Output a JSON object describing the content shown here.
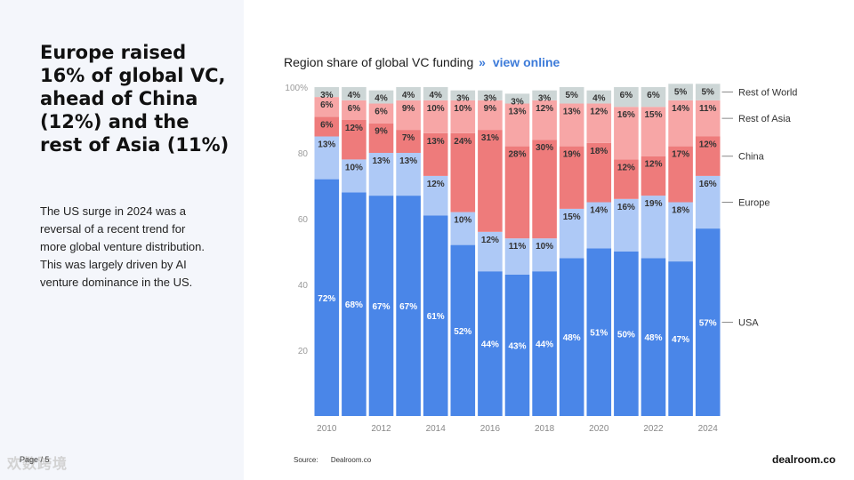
{
  "headline": "Europe raised 16% of global VC, ahead of China (12%) and the rest of Asia (11%)",
  "body": "The US surge in 2024 was a reversal of a recent trend for more global venture distribution. This was largely driven by AI venture dominance in the US.",
  "page_label": "Page / 5",
  "watermark": "欢数跨境",
  "chart_header": {
    "title": "Region share of global VC funding",
    "separator": "»",
    "link": "view online"
  },
  "footer": {
    "source_label": "Source:",
    "source_value": "Dealroom.co",
    "brand": "dealroom.co"
  },
  "colors": {
    "usa": "#4a86e8",
    "europe": "#aec9f6",
    "china": "#ee7b7b",
    "rest_of_asia": "#f7a6a6",
    "rest_of_world": "#cdd6d6"
  },
  "chart_data": {
    "type": "bar",
    "stacked": true,
    "title": "Region share of global VC funding",
    "categories": [
      "2010",
      "2011",
      "2012",
      "2013",
      "2014",
      "2015",
      "2016",
      "2017",
      "2018",
      "2019",
      "2020",
      "2021",
      "2022",
      "2023",
      "2024"
    ],
    "x_tick_labels": [
      "2010",
      "",
      "2012",
      "",
      "2014",
      "",
      "2016",
      "",
      "2018",
      "",
      "2020",
      "",
      "2022",
      "",
      "2024"
    ],
    "y_ticks": [
      20,
      40,
      60,
      80,
      100
    ],
    "y_tick_labels": [
      "20",
      "40",
      "60",
      "80",
      "100%"
    ],
    "ylim": [
      0,
      100
    ],
    "series": [
      {
        "name": "USA",
        "key": "usa",
        "values": [
          72,
          68,
          67,
          67,
          61,
          52,
          44,
          43,
          44,
          48,
          51,
          50,
          48,
          47,
          57
        ],
        "labels": [
          "72%",
          "68%",
          "67%",
          "67%",
          "61%",
          "52%",
          "44%",
          "43%",
          "44%",
          "48%",
          "51%",
          "50%",
          "48%",
          "47%",
          "57%"
        ]
      },
      {
        "name": "Europe",
        "key": "europe",
        "values": [
          13,
          10,
          13,
          13,
          12,
          10,
          12,
          11,
          10,
          15,
          14,
          16,
          19,
          18,
          16
        ],
        "labels": [
          "13%",
          "10%",
          "13%",
          "13%",
          "12%",
          "10%",
          "12%",
          "11%",
          "10%",
          "15%",
          "14%",
          "16%",
          "19%",
          "18%",
          "16%"
        ]
      },
      {
        "name": "China",
        "key": "china",
        "values": [
          6,
          12,
          9,
          7,
          13,
          24,
          31,
          28,
          30,
          19,
          18,
          12,
          12,
          17,
          12
        ],
        "labels": [
          "6%",
          "12%",
          "9%",
          "7%",
          "13%",
          "24%",
          "31%",
          "28%",
          "30%",
          "19%",
          "18%",
          "12%",
          "12%",
          "17%",
          "12%"
        ]
      },
      {
        "name": "Rest of Asia",
        "key": "rest_of_asia",
        "values": [
          6,
          6,
          6,
          9,
          10,
          10,
          9,
          13,
          12,
          13,
          12,
          16,
          15,
          14,
          11
        ],
        "labels": [
          "6%",
          "6%",
          "6%",
          "9%",
          "10%",
          "10%",
          "9%",
          "13%",
          "12%",
          "13%",
          "12%",
          "16%",
          "15%",
          "14%",
          "11%"
        ]
      },
      {
        "name": "Rest of World",
        "key": "rest_of_world",
        "values": [
          3,
          4,
          4,
          4,
          4,
          3,
          3,
          3,
          3,
          5,
          4,
          6,
          6,
          5,
          5
        ],
        "labels": [
          "3%",
          "4%",
          "4%",
          "4%",
          "4%",
          "3%",
          "3%",
          "3%",
          "3%",
          "5%",
          "4%",
          "6%",
          "6%",
          "5%",
          "5%"
        ]
      }
    ],
    "legend": [
      "Rest of World",
      "Rest of Asia",
      "China",
      "Europe",
      "USA"
    ],
    "legend_position": "right"
  }
}
